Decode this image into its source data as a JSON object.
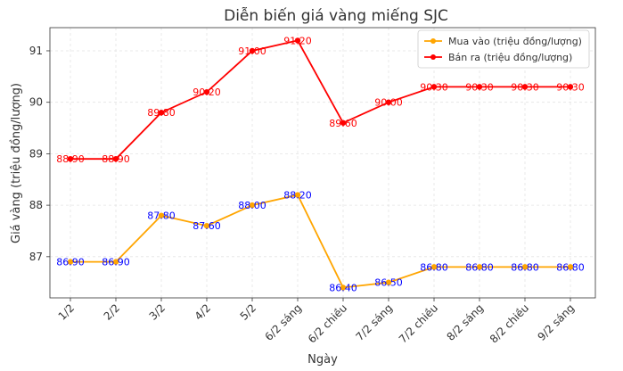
{
  "chart_data": {
    "type": "line",
    "title": "Diễn biến giá vàng miếng SJC",
    "xlabel": "Ngày",
    "ylabel": "Giá vàng (triệu đồng/lượng)",
    "categories": [
      "1/2",
      "2/2",
      "3/2",
      "4/2",
      "5/2",
      "6/2 sáng",
      "6/2 chiều",
      "7/2 sáng",
      "7/2 chiều",
      "8/2 sáng",
      "8/2 chiều",
      "9/2 sáng"
    ],
    "yticks": [
      "87",
      "88",
      "89",
      "90",
      "91"
    ],
    "ylim": [
      86.2,
      91.45
    ],
    "grid": true,
    "legend_position": "top-right",
    "series": [
      {
        "name": "Mua vào (triệu đồng/lượng)",
        "color": "#FFA500",
        "label_color": "#0000FF",
        "values": [
          86.9,
          86.9,
          87.8,
          87.6,
          88.0,
          88.2,
          86.4,
          86.5,
          86.8,
          86.8,
          86.8,
          86.8
        ],
        "labels": [
          "86.90",
          "86.90",
          "87.80",
          "87.60",
          "88.00",
          "88.20",
          "86.40",
          "86.50",
          "86.80",
          "86.80",
          "86.80",
          "86.80"
        ]
      },
      {
        "name": "Bán ra (triệu đồng/lượng)",
        "color": "#FF0000",
        "label_color": "#FF0000",
        "values": [
          88.9,
          88.9,
          89.8,
          90.2,
          91.0,
          91.2,
          89.6,
          90.0,
          90.3,
          90.3,
          90.3,
          90.3
        ],
        "labels": [
          "88.90",
          "88.90",
          "89.80",
          "90.20",
          "91.00",
          "91.20",
          "89.60",
          "90.00",
          "90.30",
          "90.30",
          "90.30",
          "90.30"
        ]
      }
    ]
  }
}
